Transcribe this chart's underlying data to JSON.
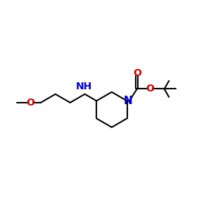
{
  "bg_color": "#ffffff",
  "bond_color": "#000000",
  "N_color": "#0000cc",
  "O_color": "#cc0000",
  "line_width": 1.5,
  "figsize": [
    3.0,
    3.0
  ],
  "dpi": 100,
  "xlim": [
    0,
    10
  ],
  "ylim": [
    0,
    10
  ]
}
